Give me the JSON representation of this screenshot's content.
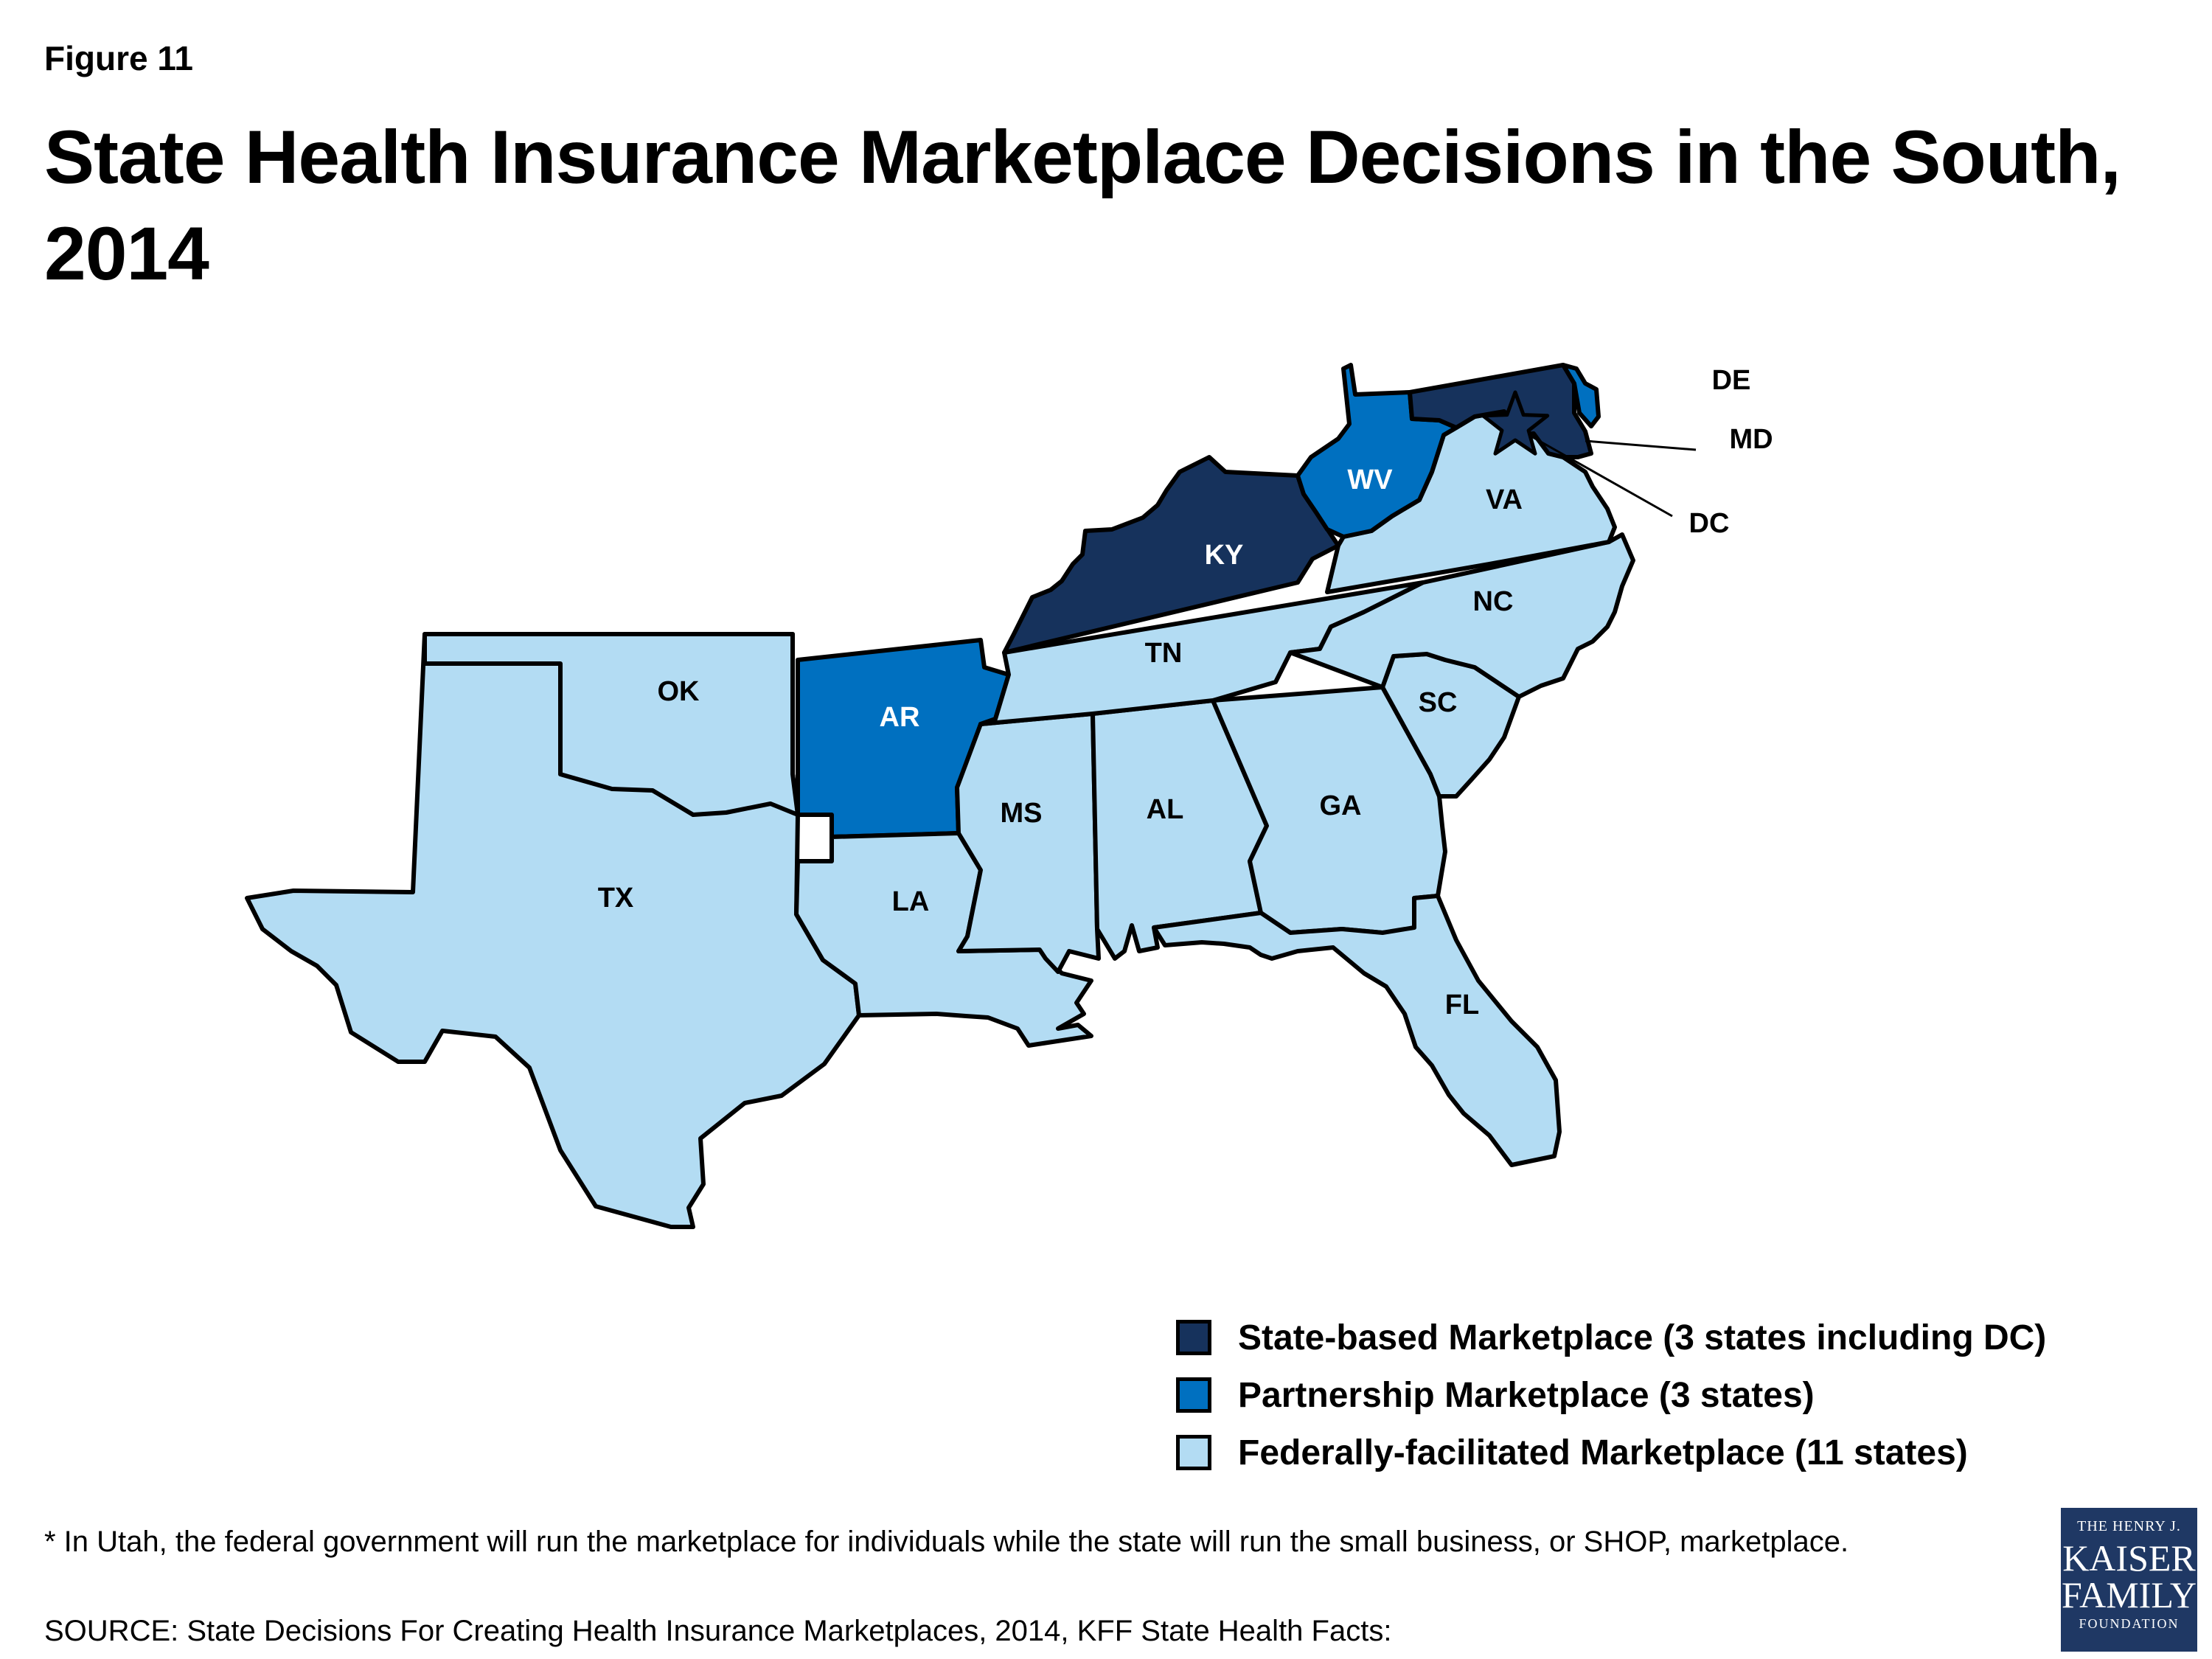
{
  "header": {
    "figure_label": "Figure 11",
    "title": "State Health Insurance Marketplace Decisions in the South, 2014"
  },
  "colors": {
    "state_based": "#16325c",
    "partnership": "#0070c0",
    "federal": "#b3dcf3"
  },
  "map": {
    "states": [
      {
        "code": "TX",
        "label": "TX",
        "type": "federal"
      },
      {
        "code": "OK",
        "label": "OK",
        "type": "federal"
      },
      {
        "code": "AR",
        "label": "AR",
        "type": "partnership"
      },
      {
        "code": "LA",
        "label": "LA",
        "type": "federal"
      },
      {
        "code": "MS",
        "label": "MS",
        "type": "federal"
      },
      {
        "code": "AL",
        "label": "AL",
        "type": "federal"
      },
      {
        "code": "GA",
        "label": "GA",
        "type": "federal"
      },
      {
        "code": "FL",
        "label": "FL",
        "type": "federal"
      },
      {
        "code": "TN",
        "label": "TN",
        "type": "federal"
      },
      {
        "code": "KY",
        "label": "KY",
        "type": "state_based"
      },
      {
        "code": "SC",
        "label": "SC",
        "type": "federal"
      },
      {
        "code": "NC",
        "label": "NC",
        "type": "federal"
      },
      {
        "code": "VA",
        "label": "VA",
        "type": "federal"
      },
      {
        "code": "WV",
        "label": "WV",
        "type": "partnership"
      },
      {
        "code": "MD",
        "label": "MD",
        "type": "state_based"
      },
      {
        "code": "DE",
        "label": "DE",
        "type": "partnership"
      },
      {
        "code": "DC",
        "label": "DC",
        "type": "state_based"
      }
    ]
  },
  "legend": {
    "items": [
      {
        "type": "state_based",
        "label": "State-based Marketplace (3 states including DC)"
      },
      {
        "type": "partnership",
        "label": "Partnership Marketplace (3  states)"
      },
      {
        "type": "federal",
        "label": "Federally-facilitated Marketplace (11 states)"
      }
    ]
  },
  "footnote": "* In Utah, the federal government will run the marketplace for individuals while the state will run the small business, or SHOP, marketplace.",
  "source": "SOURCE: State Decisions For Creating Health Insurance Marketplaces, 2014, KFF State Health Facts:",
  "logo": {
    "line1": "THE HENRY J.",
    "line2": "KAISER",
    "line3": "FAMILY",
    "line4": "FOUNDATION"
  }
}
